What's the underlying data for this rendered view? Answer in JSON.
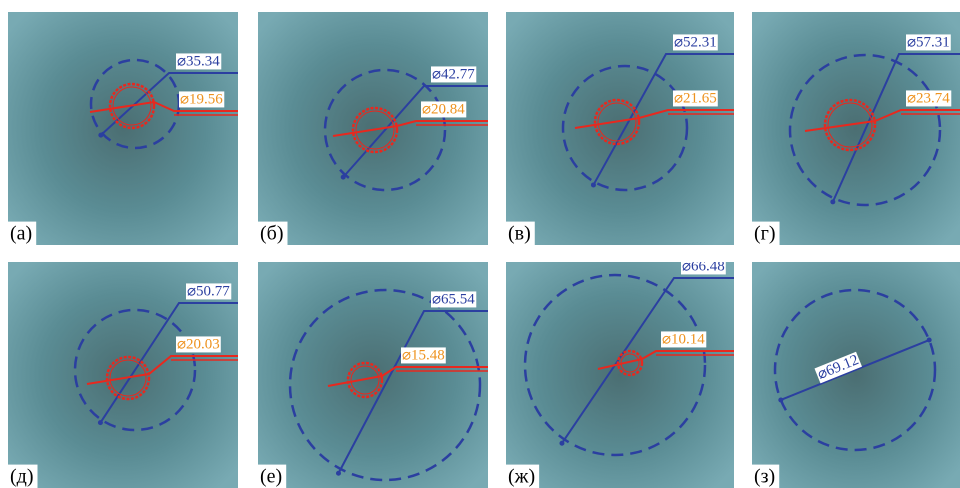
{
  "panels": [
    {
      "label": "(а)",
      "outer": "⌀35.34",
      "inner": "⌀19.56"
    },
    {
      "label": "(б)",
      "outer": "⌀42.77",
      "inner": "⌀20.84"
    },
    {
      "label": "(в)",
      "outer": "⌀52.31",
      "inner": "⌀21.65"
    },
    {
      "label": "(г)",
      "outer": "⌀57.31",
      "inner": "⌀23.74"
    },
    {
      "label": "(д)",
      "outer": "⌀50.77",
      "inner": "⌀20.03"
    },
    {
      "label": "(е)",
      "outer": "⌀65.54",
      "inner": "⌀15.48"
    },
    {
      "label": "(ж)",
      "outer": "⌀66.48",
      "inner": "⌀10.14"
    },
    {
      "label": "(з)",
      "outer": "⌀69.12"
    }
  ]
}
